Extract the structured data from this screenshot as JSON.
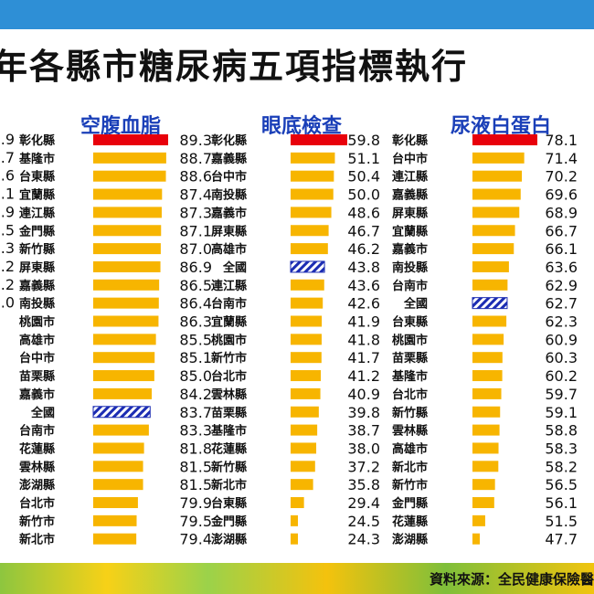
{
  "title": "年各縣市糖尿病五項指標執行",
  "source": "資料來源：全民健康保險醫",
  "colors": {
    "bar": "#f7b500",
    "highlight": "#e8000b",
    "national": "#1c2db3",
    "heading": "#1a3fb8"
  },
  "chart_data": [
    {
      "type": "bar",
      "title": "",
      "partial_values": [
        ".9",
        ".7",
        ".6",
        ".1",
        ".9",
        ".5",
        ".3",
        ".2",
        ".2",
        ".0",
        "",
        "",
        "",
        "",
        "",
        ""
      ]
    },
    {
      "type": "bar",
      "title": "空腹血脂",
      "categories": [
        "彰化縣",
        "基隆市",
        "台東縣",
        "宜蘭縣",
        "連江縣",
        "金門縣",
        "新竹縣",
        "屏東縣",
        "嘉義縣",
        "南投縣",
        "桃園市",
        "高雄市",
        "台中市",
        "苗栗縣",
        "嘉義市",
        "全國",
        "台南市",
        "花蓮縣",
        "雲林縣",
        "澎湖縣",
        "台北市",
        "新竹市",
        "新北市"
      ],
      "labels": [
        "89.3",
        "88.7",
        "88.6",
        "87.4",
        "87.3",
        "87.1",
        "87.0",
        "86.9",
        "86.5",
        "86.4",
        "86.3",
        "85.5",
        "85.1",
        "85.0",
        "84.2",
        "83.7",
        "83.3",
        "81.8",
        "81.5",
        "81.5",
        "79.9",
        "79.5",
        "79.4"
      ],
      "values": [
        89.3,
        88.7,
        88.6,
        87.4,
        87.3,
        87.1,
        87.0,
        86.9,
        86.5,
        86.4,
        86.3,
        85.5,
        85.1,
        85.0,
        84.2,
        83.7,
        83.3,
        81.8,
        81.5,
        81.5,
        79.9,
        79.5,
        79.4
      ],
      "xlim": [
        66,
        89.3
      ]
    },
    {
      "type": "bar",
      "title": "眼底檢查",
      "categories": [
        "彰化縣",
        "嘉義縣",
        "台中市",
        "南投縣",
        "嘉義市",
        "屏東縣",
        "高雄市",
        "全國",
        "連江縣",
        "台南市",
        "宜蘭縣",
        "桃園市",
        "新竹市",
        "台北市",
        "雲林縣",
        "苗栗縣",
        "基隆市",
        "花蓮縣",
        "新竹縣",
        "新北市",
        "台東縣",
        "金門縣",
        "澎湖縣"
      ],
      "labels": [
        "59.8",
        "51.1",
        "50.4",
        "50.0",
        "48.6",
        "46.7",
        "46.2",
        "43.8",
        "43.6",
        "42.6",
        "41.9",
        "41.8",
        "41.7",
        "41.2",
        "40.9",
        "39.8",
        "38.7",
        "38.0",
        "37.2",
        "35.8",
        "29.4",
        "24.5",
        "24.3"
      ],
      "values": [
        59.8,
        51.1,
        50.4,
        50.0,
        48.6,
        46.7,
        46.2,
        43.8,
        43.6,
        42.6,
        41.9,
        41.8,
        41.7,
        41.2,
        40.9,
        39.8,
        38.7,
        38.0,
        37.2,
        35.8,
        29.4,
        24.5,
        24.3
      ],
      "xlim": [
        20,
        59.8
      ]
    },
    {
      "type": "bar",
      "title": "尿液白蛋白",
      "categories": [
        "彰化縣",
        "台中市",
        "連江縣",
        "嘉義縣",
        "屏東縣",
        "宜蘭縣",
        "嘉義市",
        "南投縣",
        "台南市",
        "全國",
        "台東縣",
        "桃園市",
        "苗栗縣",
        "基隆市",
        "台北市",
        "新竹縣",
        "雲林縣",
        "高雄市",
        "新北市",
        "新竹市",
        "金門縣",
        "花蓮縣",
        "澎湖縣"
      ],
      "labels": [
        "78.1",
        "71.4",
        "70.2",
        "69.6",
        "68.9",
        "66.7",
        "66.1",
        "63.6",
        "62.9",
        "62.7",
        "62.3",
        "60.9",
        "60.3",
        "60.2",
        "59.7",
        "59.1",
        "58.8",
        "58.3",
        "58.2",
        "56.5",
        "56.1",
        "51.5",
        "47.7"
      ],
      "values": [
        78.1,
        71.4,
        70.2,
        69.6,
        68.9,
        66.7,
        66.1,
        63.6,
        62.9,
        62.7,
        62.3,
        60.9,
        60.3,
        60.2,
        59.7,
        59.1,
        58.8,
        58.3,
        58.2,
        56.5,
        56.1,
        51.5,
        47.7
      ],
      "xlim": [
        45,
        78.1
      ]
    }
  ]
}
